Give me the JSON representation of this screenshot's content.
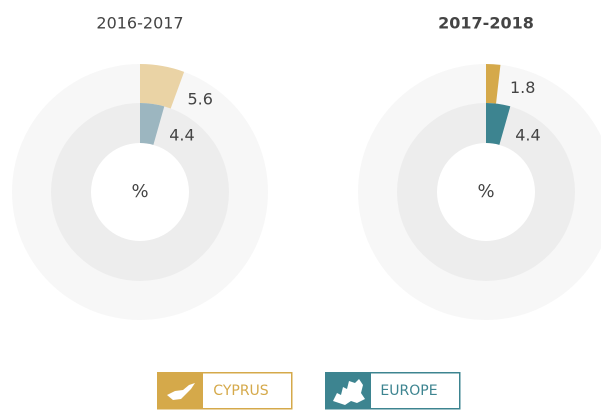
{
  "chart_data": [
    {
      "type": "pie",
      "title": "2016-2017",
      "center_label": "%",
      "series": [
        {
          "color": "#ead3a5",
          "values": [
            5.6
          ]
        },
        {
          "color": "#9cb6c0",
          "values": [
            4.4
          ]
        }
      ]
    },
    {
      "type": "pie",
      "title": "2017-2018",
      "center_label": "%",
      "series": [
        {
          "color": "#d5a94a",
          "values": [
            1.8
          ]
        },
        {
          "color": "#3d8490",
          "values": [
            4.4
          ]
        }
      ]
    }
  ],
  "legend": [
    {
      "name": "CYPRUS",
      "color": "#d5a94a"
    },
    {
      "name": "EUROPE",
      "color": "#3d8490"
    }
  ]
}
